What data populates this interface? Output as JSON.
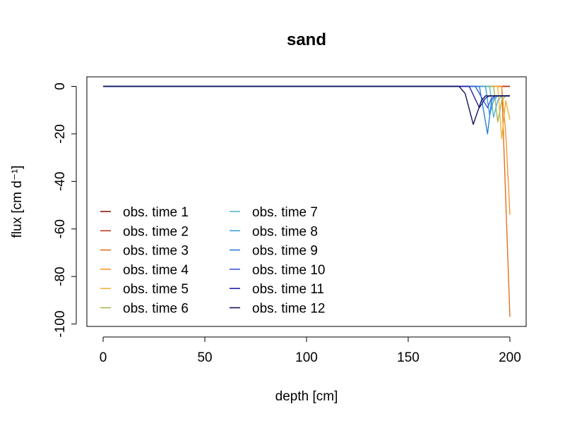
{
  "chart_data": {
    "type": "line",
    "title": "sand",
    "xlabel": "depth [cm]",
    "ylabel": "flux [cm d⁻¹]",
    "xlim": [
      -8,
      208
    ],
    "ylim": [
      -101,
      4
    ],
    "x_ticks": [
      0,
      50,
      100,
      150,
      200
    ],
    "y_ticks": [
      0,
      -20,
      -40,
      -60,
      -80,
      -100
    ],
    "grid": false,
    "legend": {
      "placement": "bottom-left",
      "columns": 2
    },
    "series": [
      {
        "name": "obs. time  1",
        "color": "#8b1a0e",
        "points": [
          [
            0,
            0
          ],
          [
            175,
            0
          ],
          [
            200,
            0
          ]
        ]
      },
      {
        "name": "obs. time  2",
        "color": "#c0361a",
        "points": [
          [
            0,
            0
          ],
          [
            175,
            0
          ],
          [
            200,
            0
          ]
        ]
      },
      {
        "name": "obs. time  3",
        "color": "#e0711e",
        "points": [
          [
            0,
            0
          ],
          [
            175,
            0
          ],
          [
            196,
            0
          ],
          [
            200,
            -97
          ]
        ]
      },
      {
        "name": "obs. time  4",
        "color": "#f5962e",
        "points": [
          [
            0,
            0
          ],
          [
            175,
            0
          ],
          [
            196,
            0
          ],
          [
            198,
            -20
          ],
          [
            200,
            -54
          ]
        ]
      },
      {
        "name": "obs. time  5",
        "color": "#f0b438",
        "points": [
          [
            0,
            0
          ],
          [
            175,
            0
          ],
          [
            194,
            0
          ],
          [
            196,
            -22
          ],
          [
            198,
            -6
          ],
          [
            200,
            -14
          ]
        ]
      },
      {
        "name": "obs. time  6",
        "color": "#a8b65a",
        "points": [
          [
            0,
            0
          ],
          [
            175,
            0
          ],
          [
            192,
            0
          ],
          [
            194,
            -15
          ],
          [
            196,
            -6
          ],
          [
            198,
            -4
          ],
          [
            200,
            -4
          ]
        ]
      },
      {
        "name": "obs. time  7",
        "color": "#56b8c6",
        "points": [
          [
            0,
            0
          ],
          [
            175,
            0
          ],
          [
            190,
            0
          ],
          [
            192,
            -13
          ],
          [
            194,
            -6
          ],
          [
            196,
            -4
          ],
          [
            200,
            -4
          ]
        ]
      },
      {
        "name": "obs. time  8",
        "color": "#3aa0dc",
        "points": [
          [
            0,
            0
          ],
          [
            175,
            0
          ],
          [
            188,
            0
          ],
          [
            190,
            -12
          ],
          [
            192,
            -6
          ],
          [
            194,
            -4
          ],
          [
            200,
            -4
          ]
        ]
      },
      {
        "name": "obs. time  9",
        "color": "#2c7fd2",
        "points": [
          [
            0,
            0
          ],
          [
            175,
            0
          ],
          [
            185,
            0
          ],
          [
            189,
            -20
          ],
          [
            191,
            -6
          ],
          [
            193,
            -4
          ],
          [
            200,
            -4
          ]
        ]
      },
      {
        "name": "obs. time  10",
        "color": "#3a5ad8",
        "points": [
          [
            0,
            0
          ],
          [
            175,
            0
          ],
          [
            183,
            0
          ],
          [
            189,
            -9
          ],
          [
            191,
            -5
          ],
          [
            193,
            -4
          ],
          [
            200,
            -4
          ]
        ]
      },
      {
        "name": "obs. time  11",
        "color": "#2222a8",
        "points": [
          [
            0,
            0
          ],
          [
            175,
            0
          ],
          [
            180,
            0
          ],
          [
            185,
            -9
          ],
          [
            188,
            -5
          ],
          [
            190,
            -4
          ],
          [
            200,
            -4
          ]
        ]
      },
      {
        "name": "obs. time  12",
        "color": "#141456",
        "points": [
          [
            0,
            0
          ],
          [
            175,
            0
          ],
          [
            178,
            -3
          ],
          [
            182,
            -16
          ],
          [
            186,
            -6
          ],
          [
            188,
            -4
          ],
          [
            200,
            -4
          ]
        ]
      }
    ]
  }
}
